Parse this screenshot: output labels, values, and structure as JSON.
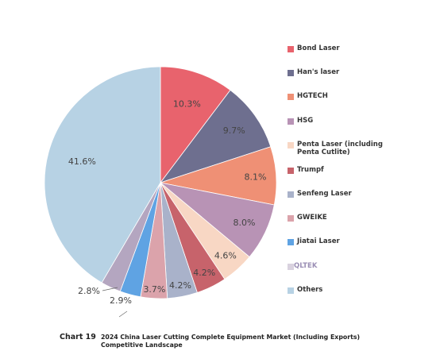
{
  "chart_data": {
    "type": "pie",
    "title": "2024 China Laser Cutting Complete Equipment Market (Including Exports) Competitive Landscape",
    "chart_number": "Chart 19",
    "start_angle_deg": 0,
    "direction": "clockwise",
    "legend_position": "right",
    "slices": [
      {
        "name": "Bond Laser",
        "value": 10.3,
        "label": "10.3%",
        "color": "#e8636d"
      },
      {
        "name": "Han's laser",
        "value": 9.7,
        "label": "9.7%",
        "color": "#6e6f8f"
      },
      {
        "name": "HGTECH",
        "value": 8.1,
        "label": "8.1%",
        "color": "#ef9075"
      },
      {
        "name": "HSG",
        "value": 8.0,
        "label": "8.0%",
        "color": "#b893b5"
      },
      {
        "name": "Penta Laser (including Penta Cutlite)",
        "value": 4.6,
        "label": "4.6%",
        "color": "#f8d7c4"
      },
      {
        "name": "Trumpf",
        "value": 4.2,
        "label": "4.2%",
        "color": "#c7636b"
      },
      {
        "name": "Senfeng Laser",
        "value": 4.2,
        "label": "4.2%",
        "color": "#a9b2ca"
      },
      {
        "name": "GWEIKE",
        "value": 3.7,
        "label": "3.7%",
        "color": "#dba3ab"
      },
      {
        "name": "Jiatai Laser",
        "value": 2.9,
        "label": "2.9%",
        "color": "#5fa3e3"
      },
      {
        "name": "QLTEK",
        "value": 2.8,
        "label": "2.8%",
        "color": "#b4a6c0"
      },
      {
        "name": "Others",
        "value": 41.6,
        "label": "41.6%",
        "color": "#b7d2e4"
      }
    ]
  }
}
